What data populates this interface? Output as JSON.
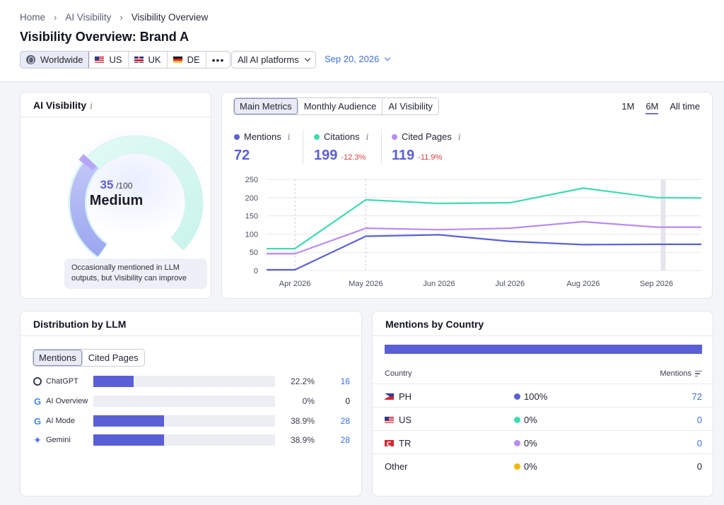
{
  "breadcrumb": [
    "Home",
    "AI Visibility",
    "Visibility Overview"
  ],
  "page_title": "Visibility Overview: Brand A",
  "regions": {
    "worldwide": "Worldwide",
    "us": "US",
    "uk": "UK",
    "de": "DE",
    "more": "•••"
  },
  "platform_select": "All AI platforms",
  "date": "Sep 20, 2026",
  "ai_visibility": {
    "title": "AI Visibility",
    "info": "i",
    "score": "35",
    "score_max": "/100",
    "score_fraction": 0.35,
    "level": "Medium",
    "note": "Occasionally mentioned in LLM outputs, but Visibility can improve"
  },
  "metrics": {
    "tabs": [
      "Main Metrics",
      "Monthly Audience",
      "AI Visibility"
    ],
    "ranges": [
      "1M",
      "6M",
      "All time"
    ],
    "mentions": {
      "label": "Mentions",
      "info": "i",
      "value": "72",
      "delta": ""
    },
    "citations": {
      "label": "Citations",
      "info": "i",
      "value": "199",
      "delta": "-12.3%"
    },
    "cited_pages": {
      "label": "Cited Pages",
      "info": "i",
      "value": "119",
      "delta": "-11.9%"
    }
  },
  "colors": {
    "mentions": "#5b5fd6",
    "citations": "#3ddbb0",
    "cited_pages": "#b98cf2",
    "other": "#f2b705"
  },
  "chart_data": {
    "type": "line",
    "x": [
      "2026-03-20",
      "2026-04-01",
      "2026-05-01",
      "2026-06-01",
      "2026-07-01",
      "2026-08-01",
      "2026-09-01",
      "2026-09-20"
    ],
    "xticks": [
      "Apr 2026",
      "May 2026",
      "Jun 2026",
      "Jul 2026",
      "Aug 2026",
      "Sep 2026"
    ],
    "yticks": [
      "0",
      "50",
      "100",
      "150",
      "200",
      "250"
    ],
    "ylim": [
      0,
      250
    ],
    "grid": true,
    "series": [
      {
        "name": "Citations",
        "values": [
          60,
          60,
          194,
          184,
          186,
          226,
          200,
          199
        ]
      },
      {
        "name": "Cited Pages",
        "values": [
          46,
          46,
          116,
          112,
          116,
          134,
          119,
          119
        ]
      },
      {
        "name": "Mentions",
        "values": [
          2,
          2,
          94,
          98,
          80,
          71,
          72,
          72
        ]
      }
    ]
  },
  "llm": {
    "title": "Distribution by LLM",
    "tabs": [
      "Mentions",
      "Cited Pages"
    ],
    "rows": [
      {
        "name": "ChatGPT",
        "icon": "openai-icon",
        "pct": "22.2%",
        "share": 0.222,
        "count": "16"
      },
      {
        "name": "AI Overview",
        "icon": "google-icon",
        "pct": "0%",
        "share": 0,
        "count": "0"
      },
      {
        "name": "AI Mode",
        "icon": "google-icon",
        "pct": "38.9%",
        "share": 0.389,
        "count": "28"
      },
      {
        "name": "Gemini",
        "icon": "gemini-icon",
        "pct": "38.9%",
        "share": 0.389,
        "count": "28"
      }
    ]
  },
  "country": {
    "title": "Mentions by Country",
    "col_country": "Country",
    "col_mentions": "Mentions",
    "rows": [
      {
        "name": "PH",
        "flag": "ph",
        "share": "100%",
        "count": "72"
      },
      {
        "name": "US",
        "flag": "us",
        "share": "0%",
        "count": "0"
      },
      {
        "name": "TR",
        "flag": "tr",
        "share": "0%",
        "count": "0"
      },
      {
        "name": "Other",
        "flag": "",
        "share": "0%",
        "count": "0"
      }
    ]
  }
}
